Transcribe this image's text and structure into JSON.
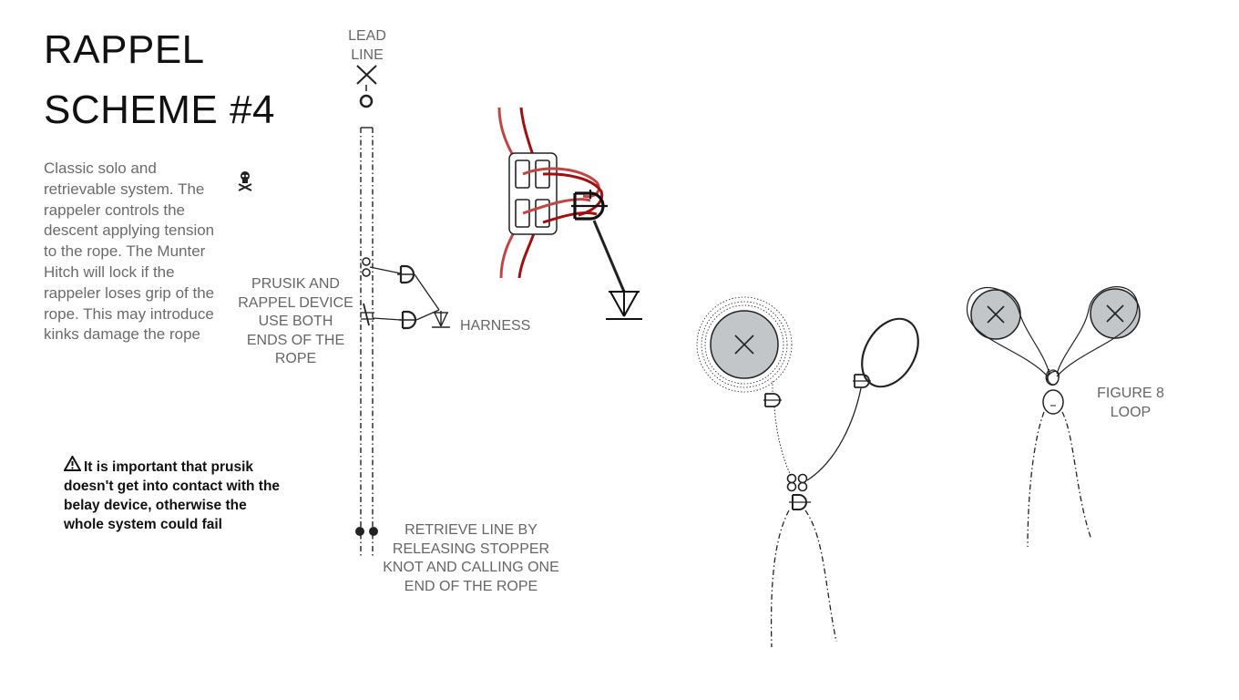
{
  "title": {
    "line1": "RAPPEL",
    "line2": "SCHEME #4"
  },
  "description": "Classic solo and retrievable system. The rappeler controls the descent applying tension to the rope. The Munter Hitch will lock if the rappeler loses grip of the rope. This  may introduce kinks damage the rope",
  "warning": {
    "icon": "warning-triangle-icon",
    "text": "It is important that prusik doesn't get into contact with the belay device, otherwise the whole system could fail"
  },
  "labels": {
    "lead_line": [
      "LEAD",
      "LINE"
    ],
    "prusik": [
      "PRUSIK AND",
      "RAPPEL DEVICE",
      "USE BOTH",
      "ENDS OF THE",
      "ROPE"
    ],
    "harness": "HARNESS",
    "retrieve": [
      "RETRIEVE LINE BY",
      "RELEASING STOPPER",
      "KNOT AND CALLING ONE",
      "END OF THE ROPE"
    ],
    "figure8": [
      "FIGURE 8",
      "LOOP"
    ]
  },
  "icons": [
    "skull-crossbones-icon",
    "anchor-x-icon",
    "carabiner-icon",
    "harness-icon",
    "bolt-icon"
  ],
  "colors": {
    "rope_red": "#a01010",
    "rope_light_red": "#c04545",
    "bolt_fill": "#c3c6c8",
    "line": "#222222"
  }
}
